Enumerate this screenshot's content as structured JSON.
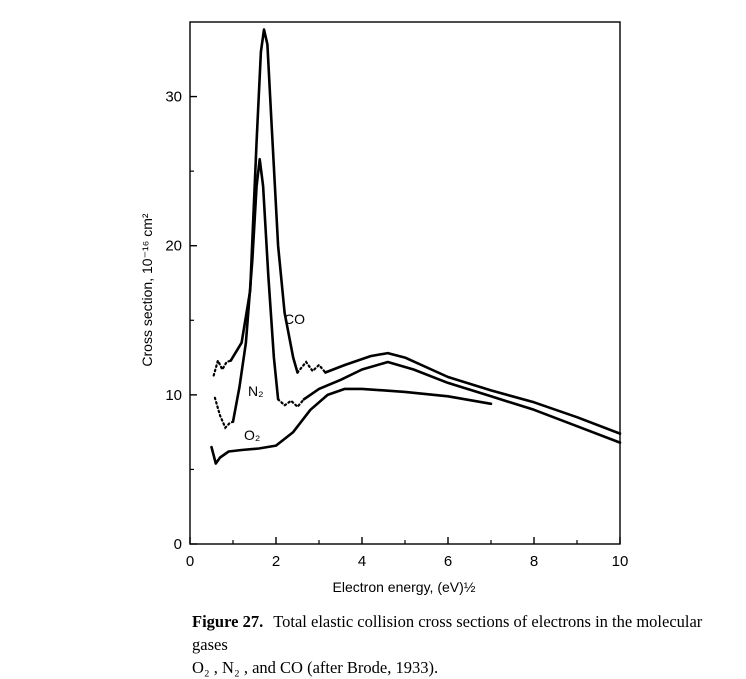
{
  "chart_data": {
    "type": "line",
    "title": "",
    "xlabel": "Electron energy, (eV)½",
    "ylabel": "Cross section, 10⁻¹⁶ cm²",
    "xlim": [
      0,
      10
    ],
    "ylim": [
      0,
      35
    ],
    "xticks": [
      0,
      2,
      4,
      6,
      8,
      10
    ],
    "yticks": [
      0,
      10,
      20,
      30
    ],
    "xtick_labels": [
      "0",
      "2",
      "4",
      "6",
      "8",
      "10"
    ],
    "ytick_labels": [
      "0",
      "10",
      "20",
      "30"
    ],
    "grid": false,
    "legend": "none (curves labelled directly)",
    "series": [
      {
        "name": "CO",
        "color": "#000000",
        "solid": [
          [
            0.95,
            12.3
          ],
          [
            1.2,
            13.5
          ],
          [
            1.4,
            17
          ],
          [
            1.55,
            27
          ],
          [
            1.65,
            33
          ],
          [
            1.72,
            34.5
          ],
          [
            1.8,
            33.5
          ],
          [
            1.9,
            28
          ],
          [
            2.05,
            20
          ],
          [
            2.2,
            15.5
          ],
          [
            2.4,
            12.5
          ],
          [
            2.5,
            11.5
          ]
        ],
        "dotted_segments": [
          [
            [
              0.55,
              11.3
            ],
            [
              0.65,
              12.3
            ],
            [
              0.75,
              11.7
            ],
            [
              0.85,
              12.2
            ],
            [
              0.95,
              12.3
            ]
          ],
          [
            [
              2.5,
              11.5
            ],
            [
              2.7,
              12.2
            ],
            [
              2.85,
              11.6
            ],
            [
              3.0,
              12.0
            ],
            [
              3.15,
              11.5
            ]
          ]
        ],
        "solid_tail": [
          [
            3.15,
            11.5
          ],
          [
            3.6,
            12.0
          ],
          [
            4.2,
            12.6
          ],
          [
            4.6,
            12.8
          ],
          [
            5.0,
            12.5
          ],
          [
            6.0,
            11.2
          ],
          [
            7.0,
            10.3
          ],
          [
            8.0,
            9.5
          ],
          [
            9.0,
            8.5
          ],
          [
            10.0,
            7.4
          ]
        ]
      },
      {
        "name": "N2",
        "color": "#000000",
        "solid": [
          [
            1.0,
            8.2
          ],
          [
            1.15,
            10.5
          ],
          [
            1.3,
            13.5
          ],
          [
            1.45,
            19
          ],
          [
            1.55,
            24
          ],
          [
            1.62,
            25.8
          ],
          [
            1.7,
            24
          ],
          [
            1.82,
            18
          ],
          [
            1.95,
            12.5
          ],
          [
            2.05,
            9.7
          ]
        ],
        "dotted_segments": [
          [
            [
              0.58,
              9.8
            ],
            [
              0.7,
              8.6
            ],
            [
              0.82,
              7.8
            ],
            [
              0.92,
              8.1
            ],
            [
              1.0,
              8.2
            ]
          ],
          [
            [
              2.05,
              9.7
            ],
            [
              2.2,
              9.3
            ],
            [
              2.35,
              9.6
            ],
            [
              2.5,
              9.2
            ],
            [
              2.65,
              9.7
            ]
          ]
        ],
        "solid_tail": [
          [
            2.65,
            9.7
          ],
          [
            3.0,
            10.4
          ],
          [
            3.5,
            11.0
          ],
          [
            4.0,
            11.7
          ],
          [
            4.6,
            12.2
          ],
          [
            5.2,
            11.7
          ],
          [
            6.0,
            10.8
          ],
          [
            7.0,
            9.9
          ],
          [
            8.0,
            9.0
          ],
          [
            9.0,
            7.9
          ],
          [
            10.0,
            6.8
          ]
        ]
      },
      {
        "name": "O2",
        "color": "#000000",
        "solid": [
          [
            0.5,
            6.5
          ],
          [
            0.6,
            5.4
          ],
          [
            0.7,
            5.8
          ],
          [
            0.9,
            6.2
          ],
          [
            1.2,
            6.3
          ],
          [
            1.6,
            6.4
          ],
          [
            2.0,
            6.6
          ],
          [
            2.4,
            7.5
          ],
          [
            2.8,
            9.0
          ],
          [
            3.2,
            10.0
          ],
          [
            3.6,
            10.4
          ],
          [
            4.0,
            10.4
          ],
          [
            5.0,
            10.2
          ],
          [
            6.0,
            9.9
          ],
          [
            7.0,
            9.4
          ],
          [
            6.4,
            9.7
          ]
        ],
        "dotted_segments": [],
        "solid_tail": []
      }
    ],
    "annotations": [
      "CO",
      "N₂",
      "O₂"
    ]
  },
  "caption": {
    "figure_number": "Figure 27.",
    "text_line1": "Total elastic collision cross sections of electrons in the molecular gases",
    "text_line2": "O₂ , N₂ , and CO (after Brode, 1933)."
  }
}
